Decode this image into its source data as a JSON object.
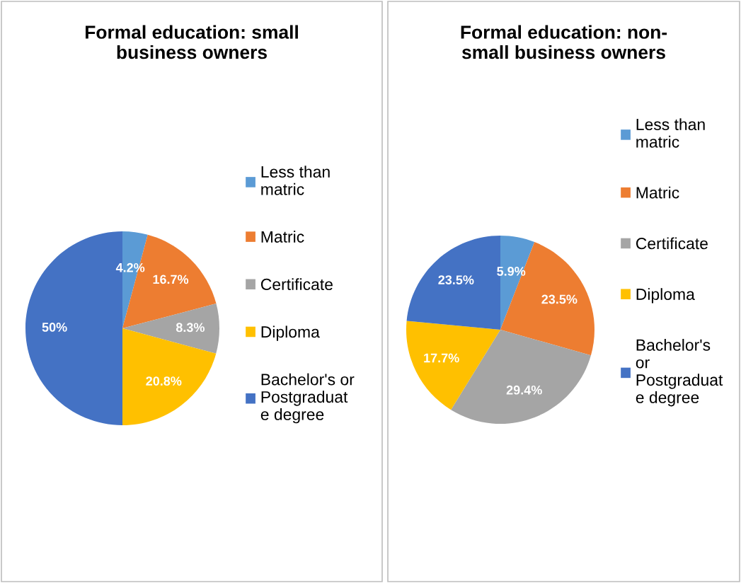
{
  "chart_data": [
    {
      "type": "pie",
      "title": "Formal education: small business owners",
      "categories": [
        "Less than matric",
        "Matric",
        "Certificate",
        "Diploma",
        "Bachelor's or Postgraduate degree"
      ],
      "values": [
        4.2,
        16.7,
        8.3,
        20.8,
        50
      ],
      "value_labels": [
        "4.2%",
        "16.7%",
        "8.3%",
        "20.8%",
        "50%"
      ],
      "colors": [
        "#5b9bd5",
        "#ed7d31",
        "#a5a5a5",
        "#ffc000",
        "#4472c4"
      ],
      "legend": "right"
    },
    {
      "type": "pie",
      "title": "Formal education: non-small business owners",
      "categories": [
        "Less than matric",
        "Matric",
        "Certificate",
        "Diploma",
        "Bachelor's or Postgraduate degree"
      ],
      "values": [
        5.9,
        23.5,
        29.4,
        17.7,
        23.5
      ],
      "value_labels": [
        "5.9%",
        "23.5%",
        "29.4%",
        "17.7%",
        "23.5%"
      ],
      "colors": [
        "#5b9bd5",
        "#ed7d31",
        "#a5a5a5",
        "#ffc000",
        "#4472c4"
      ],
      "legend": "right"
    }
  ]
}
